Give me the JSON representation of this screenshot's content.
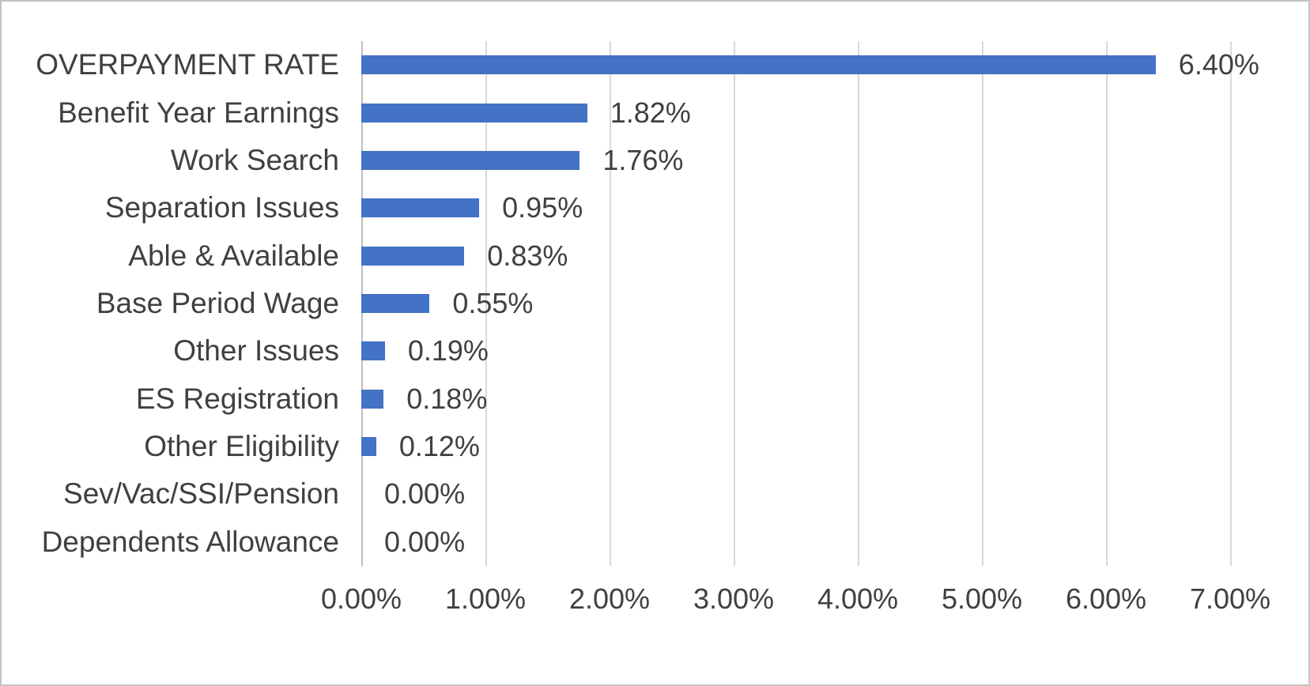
{
  "chart_data": {
    "type": "bar",
    "orientation": "horizontal",
    "title": "",
    "xlabel": "",
    "ylabel": "",
    "categories": [
      "OVERPAYMENT RATE",
      "Benefit Year Earnings",
      "Work Search",
      "Separation Issues",
      "Able & Available",
      "Base Period Wage",
      "Other Issues",
      "ES Registration",
      "Other Eligibility",
      "Sev/Vac/SSI/Pension",
      "Dependents Allowance"
    ],
    "values": [
      6.4,
      1.82,
      1.76,
      0.95,
      0.83,
      0.55,
      0.19,
      0.18,
      0.12,
      0.0,
      0.0
    ],
    "data_labels": [
      "6.40%",
      "1.82%",
      "1.76%",
      "0.95%",
      "0.83%",
      "0.55%",
      "0.19%",
      "0.18%",
      "0.12%",
      "0.00%",
      "0.00%"
    ],
    "x_ticks": [
      "0.00%",
      "1.00%",
      "2.00%",
      "3.00%",
      "4.00%",
      "5.00%",
      "6.00%",
      "7.00%"
    ],
    "x_tick_values": [
      0,
      1,
      2,
      3,
      4,
      5,
      6,
      7
    ],
    "xlim": [
      0,
      7
    ],
    "grid": true,
    "legend": false,
    "colors": {
      "bar": "#4472c4",
      "text": "#404040",
      "gridline": "#d9d9d9",
      "axis_line": "#bfbfbf",
      "frame_border": "#c3c3c3",
      "background": "#ffffff"
    }
  }
}
